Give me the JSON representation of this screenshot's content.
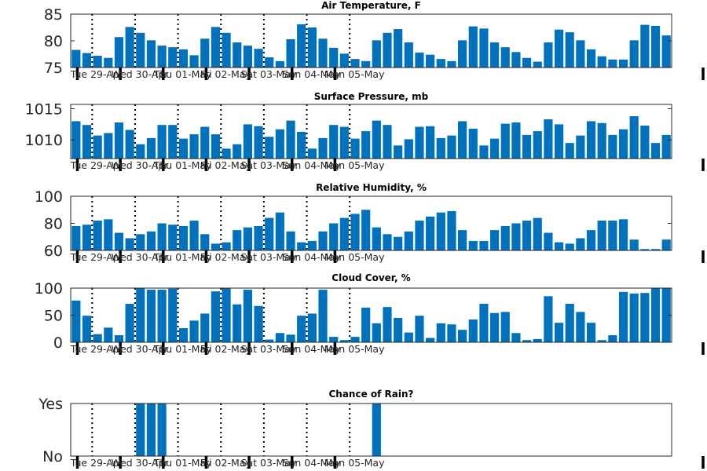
{
  "days": [
    "Tue 29-Apr",
    "Wed 30-Apr",
    "Thu 01-May",
    "Fri 02-May",
    "Sat 03-May",
    "Sun 04-May",
    "Mon 05-May"
  ],
  "colors": {
    "bar": "#0072bd"
  },
  "chart_data": [
    {
      "type": "bar",
      "title": "Air Temperature, F",
      "ylim": [
        75,
        85
      ],
      "yticks": [
        "75",
        "80",
        "85"
      ],
      "ytick_values": [
        75,
        80,
        85
      ],
      "values": [
        78.3,
        77.7,
        77.2,
        76.8,
        80.7,
        82.6,
        81.5,
        80.1,
        79.1,
        78.8,
        78.4,
        77.3,
        80.4,
        82.6,
        81.5,
        79.7,
        79.1,
        78.5,
        76.9,
        76.2,
        80.3,
        83.1,
        82.5,
        80.4,
        78.7,
        77.6,
        76.6,
        76.2,
        80.1,
        81.5,
        82.2,
        79.7,
        77.8,
        77.4,
        76.6,
        76.2,
        80.1,
        82.7,
        82.3,
        79.7,
        78.8,
        77.9,
        76.8,
        76.1,
        79.7,
        82.1,
        81.6,
        80.1,
        78.4,
        77.1,
        76.5,
        76.5,
        80.1,
        83.0,
        82.8,
        81.0
      ]
    },
    {
      "type": "bar",
      "title": "Surface Pressure, mb",
      "ylim": [
        1007,
        1015.7
      ],
      "yticks": [
        "1010",
        "1015"
      ],
      "ytick_values": [
        1010,
        1015
      ],
      "values": [
        1013.0,
        1012.4,
        1010.7,
        1011.1,
        1012.8,
        1011.6,
        1009.3,
        1010.3,
        1012.4,
        1012.4,
        1010.2,
        1010.9,
        1012.1,
        1010.9,
        1008.6,
        1009.3,
        1012.5,
        1012.2,
        1010.5,
        1011.7,
        1013.1,
        1011.3,
        1008.6,
        1010.3,
        1012.4,
        1012.1,
        1010.2,
        1011.4,
        1013.1,
        1012.4,
        1009.1,
        1010.1,
        1012.1,
        1012.2,
        1010.3,
        1010.7,
        1013.0,
        1011.8,
        1009.1,
        1010.2,
        1012.6,
        1012.8,
        1010.8,
        1011.4,
        1013.3,
        1012.5,
        1009.5,
        1010.7,
        1013.0,
        1012.7,
        1010.8,
        1011.7,
        1013.8,
        1012.3,
        1009.5,
        1010.8
      ]
    },
    {
      "type": "bar",
      "title": "Relative Humidity, %",
      "ylim": [
        60,
        100
      ],
      "yticks": [
        "60",
        "80",
        "100"
      ],
      "ytick_values": [
        60,
        80,
        100
      ],
      "values": [
        78,
        79,
        82,
        83,
        73,
        69,
        72,
        74,
        80,
        79,
        78,
        82,
        72,
        65,
        66,
        75,
        77,
        78,
        84,
        88,
        74,
        66,
        67,
        74,
        80,
        84,
        87,
        90,
        77,
        72,
        70,
        74,
        82,
        85,
        88,
        89,
        75,
        67,
        67,
        75,
        78,
        80,
        82,
        84,
        73,
        66,
        65,
        69,
        75,
        82,
        82,
        83,
        68,
        61,
        61,
        68
      ]
    },
    {
      "type": "bar",
      "title": "Cloud Cover, %",
      "ylim": [
        0,
        100
      ],
      "yticks": [
        "0",
        "50",
        "100"
      ],
      "ytick_values": [
        0,
        50,
        100
      ],
      "values": [
        77,
        49,
        15,
        27,
        13,
        71,
        100,
        97,
        97,
        99,
        26,
        40,
        53,
        94,
        100,
        70,
        97,
        67,
        5,
        17,
        14,
        49,
        53,
        97,
        10,
        4,
        10,
        64,
        35,
        65,
        45,
        18,
        49,
        8,
        35,
        33,
        23,
        42,
        71,
        54,
        56,
        17,
        4,
        6,
        85,
        36,
        71,
        56,
        36,
        4,
        13,
        93,
        90,
        91,
        100,
        100
      ]
    },
    {
      "type": "bar",
      "title": "Chance of Rain?",
      "ylim": [
        0,
        1
      ],
      "yticks": [
        "No",
        "Yes"
      ],
      "ytick_values": [
        0,
        1
      ],
      "values": [
        0,
        0,
        0,
        0,
        0,
        0,
        1,
        1,
        1,
        0,
        0,
        0,
        0,
        0,
        0,
        0,
        0,
        0,
        0,
        0,
        0,
        0,
        0,
        0,
        0,
        0,
        0,
        0,
        1,
        0,
        0,
        0,
        0,
        0,
        0,
        0,
        0,
        0,
        0,
        0,
        0,
        0,
        0,
        0,
        0,
        0,
        0,
        0,
        0,
        0,
        0,
        0,
        0,
        0,
        0,
        0
      ]
    }
  ]
}
